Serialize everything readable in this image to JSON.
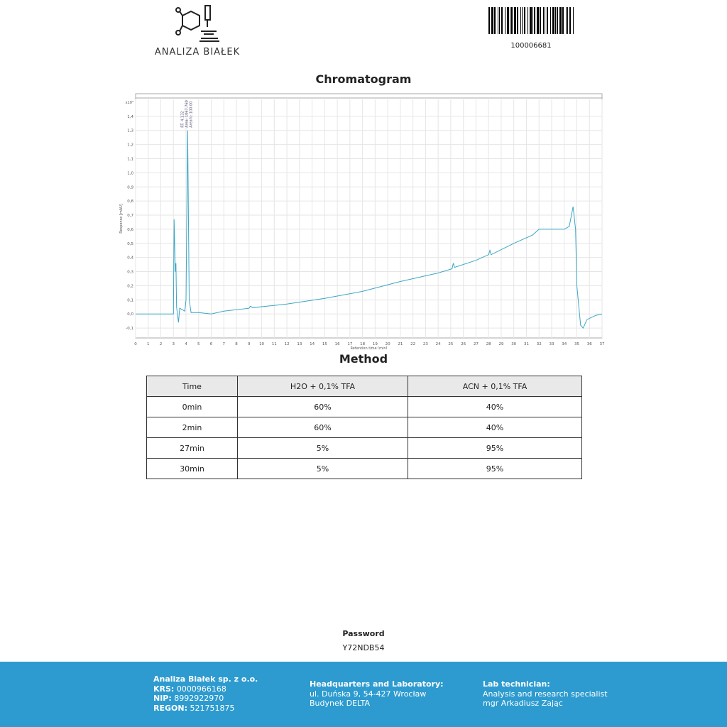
{
  "header": {
    "logo_text": "ANALIZA BIAŁEK",
    "barcode_number": "100006681"
  },
  "chart_section": {
    "title": "Chromatogram"
  },
  "chart_data": {
    "type": "line",
    "xlabel": "Retention time [min]",
    "ylabel": "Response [mAU]",
    "y_multiplier": "x10²",
    "xlim": [
      0,
      37
    ],
    "ylim": [
      -0.17,
      1.52
    ],
    "x_ticks": [
      0,
      1,
      2,
      3,
      4,
      5,
      6,
      7,
      8,
      9,
      10,
      11,
      12,
      13,
      14,
      15,
      16,
      17,
      18,
      19,
      20,
      21,
      22,
      23,
      24,
      25,
      26,
      27,
      28,
      29,
      30,
      31,
      32,
      33,
      34,
      35,
      36,
      37
    ],
    "y_ticks": [
      "-0,1",
      "0,0",
      "0,1",
      "0,2",
      "0,3",
      "0,4",
      "0,5",
      "0,6",
      "0,7",
      "0,8",
      "0,9",
      "1,0",
      "1,1",
      "1,2",
      "1,3",
      "1,4"
    ],
    "grid": true,
    "color": "#3aa6c4",
    "peak_annotation": [
      "RT: 4.132",
      "Area: 1067.760",
      "Area%: 100.00"
    ],
    "series": [
      {
        "x": [
          0,
          3.0,
          3.05,
          3.15,
          3.2,
          3.25,
          3.4,
          3.5,
          3.9,
          4.0,
          4.13,
          4.25,
          4.4,
          5,
          6,
          7,
          9,
          9.1,
          9.3,
          12,
          15,
          18,
          21,
          24,
          25.1,
          25.2,
          25.3,
          27,
          28,
          28.1,
          28.2,
          30,
          31.5,
          32,
          34,
          34.4,
          34.7,
          34.9,
          35,
          35.3,
          35.5,
          35.8,
          36.5,
          37
        ],
        "y": [
          0,
          0,
          0.67,
          0.3,
          0.36,
          0.05,
          -0.06,
          0.04,
          0.02,
          0.1,
          1.3,
          0.1,
          0.01,
          0.01,
          0.0,
          0.02,
          0.04,
          0.055,
          0.045,
          0.07,
          0.11,
          0.16,
          0.23,
          0.29,
          0.32,
          0.36,
          0.33,
          0.38,
          0.42,
          0.45,
          0.42,
          0.5,
          0.56,
          0.6,
          0.6,
          0.62,
          0.76,
          0.6,
          0.2,
          -0.08,
          -0.1,
          -0.04,
          -0.01,
          0.0
        ]
      }
    ]
  },
  "method": {
    "title": "Method",
    "headers": [
      "Time",
      "H2O + 0,1% TFA",
      "ACN + 0,1% TFA"
    ],
    "rows": [
      [
        "0min",
        "60%",
        "40%"
      ],
      [
        "2min",
        "60%",
        "40%"
      ],
      [
        "27min",
        "5%",
        "95%"
      ],
      [
        "30min",
        "5%",
        "95%"
      ]
    ]
  },
  "password": {
    "label": "Password",
    "value": "Y72NDB54"
  },
  "footer": {
    "company": "Analiza Białek sp. z o.o.",
    "krs_label": "KRS:",
    "krs": "0000966168",
    "nip_label": "NIP:",
    "nip": "8992922970",
    "regon_label": "REGON:",
    "regon": "521751875",
    "hq_title": "Headquarters and Laboratory:",
    "hq_line1": "ul. Duńska 9, 54-427 Wrocław",
    "hq_line2": "Budynek DELTA",
    "tech_title": "Lab technician:",
    "tech_line1": "Analysis and research specialist",
    "tech_line2": "mgr Arkadiusz Zając"
  }
}
